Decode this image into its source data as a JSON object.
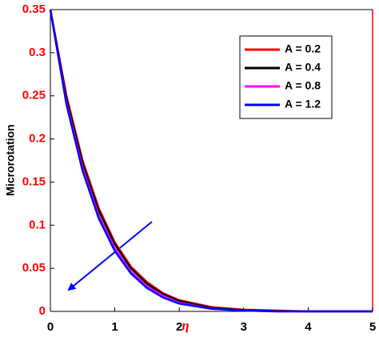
{
  "chart_data": {
    "type": "line",
    "ylabel": "Microrotation",
    "xlabel": "η",
    "x": [
      0,
      0.25,
      0.5,
      0.75,
      1,
      1.25,
      1.5,
      1.75,
      2,
      2.5,
      3,
      3.5,
      4,
      4.5,
      5
    ],
    "series": [
      {
        "name": "A = 0.2",
        "color": "#ff0000",
        "values": [
          0.35,
          0.25,
          0.175,
          0.12,
          0.08,
          0.052,
          0.034,
          0.021,
          0.013,
          0.005,
          0.002,
          0.001,
          0,
          0,
          0
        ]
      },
      {
        "name": "A = 0.4",
        "color": "#000000",
        "values": [
          0.35,
          0.247,
          0.172,
          0.117,
          0.078,
          0.05,
          0.032,
          0.02,
          0.012,
          0.004,
          0.0015,
          0.0005,
          0,
          0,
          0
        ]
      },
      {
        "name": "A = 0.8",
        "color": "#ff00ff",
        "values": [
          0.35,
          0.242,
          0.166,
          0.111,
          0.073,
          0.046,
          0.029,
          0.018,
          0.01,
          0.003,
          0.001,
          0,
          0,
          0,
          0
        ]
      },
      {
        "name": "A = 1.2",
        "color": "#0000ff",
        "values": [
          0.35,
          0.24,
          0.163,
          0.108,
          0.07,
          0.044,
          0.027,
          0.016,
          0.009,
          0.003,
          0.001,
          0,
          0,
          0,
          0
        ]
      }
    ],
    "xlim": [
      0,
      5
    ],
    "xticks": [
      0,
      1,
      2,
      3,
      4,
      5
    ],
    "ylim": [
      0,
      0.35
    ],
    "yticks": [
      0,
      0.05,
      0.1,
      0.15,
      0.2,
      0.25,
      0.3,
      0.35
    ],
    "legend": "upper right"
  }
}
